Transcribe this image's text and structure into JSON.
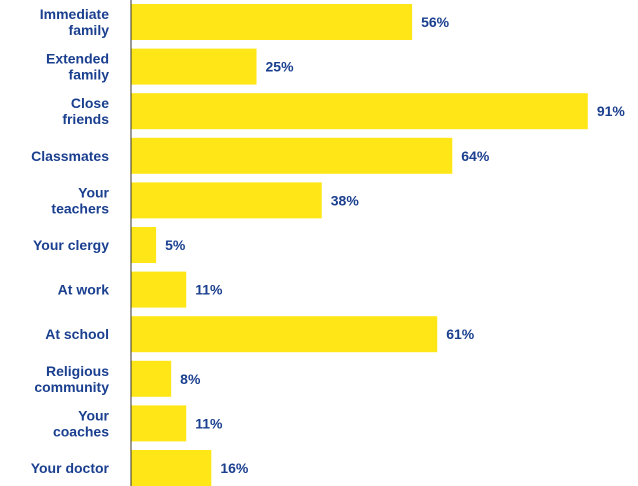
{
  "colors": {
    "bar": "#FFE617",
    "text": "#1A3F8F",
    "axis": "#333333",
    "background": "#FFFFFF"
  },
  "chart_data": {
    "type": "bar",
    "orientation": "horizontal",
    "title": "",
    "xlabel": "",
    "ylabel": "",
    "value_suffix": "%",
    "xlim": [
      0,
      100
    ],
    "grid": false,
    "legend": "none",
    "categories": [
      [
        "Immediate",
        "family"
      ],
      [
        "Extended",
        "family"
      ],
      [
        "Close",
        "friends"
      ],
      [
        "Classmates"
      ],
      [
        "Your",
        "teachers"
      ],
      [
        "Your clergy"
      ],
      [
        "At work"
      ],
      [
        "At school"
      ],
      [
        "Religious",
        "community"
      ],
      [
        "Your",
        "coaches"
      ],
      [
        "Your doctor"
      ]
    ],
    "values": [
      56,
      25,
      91,
      64,
      38,
      5,
      11,
      61,
      8,
      11,
      16
    ]
  }
}
